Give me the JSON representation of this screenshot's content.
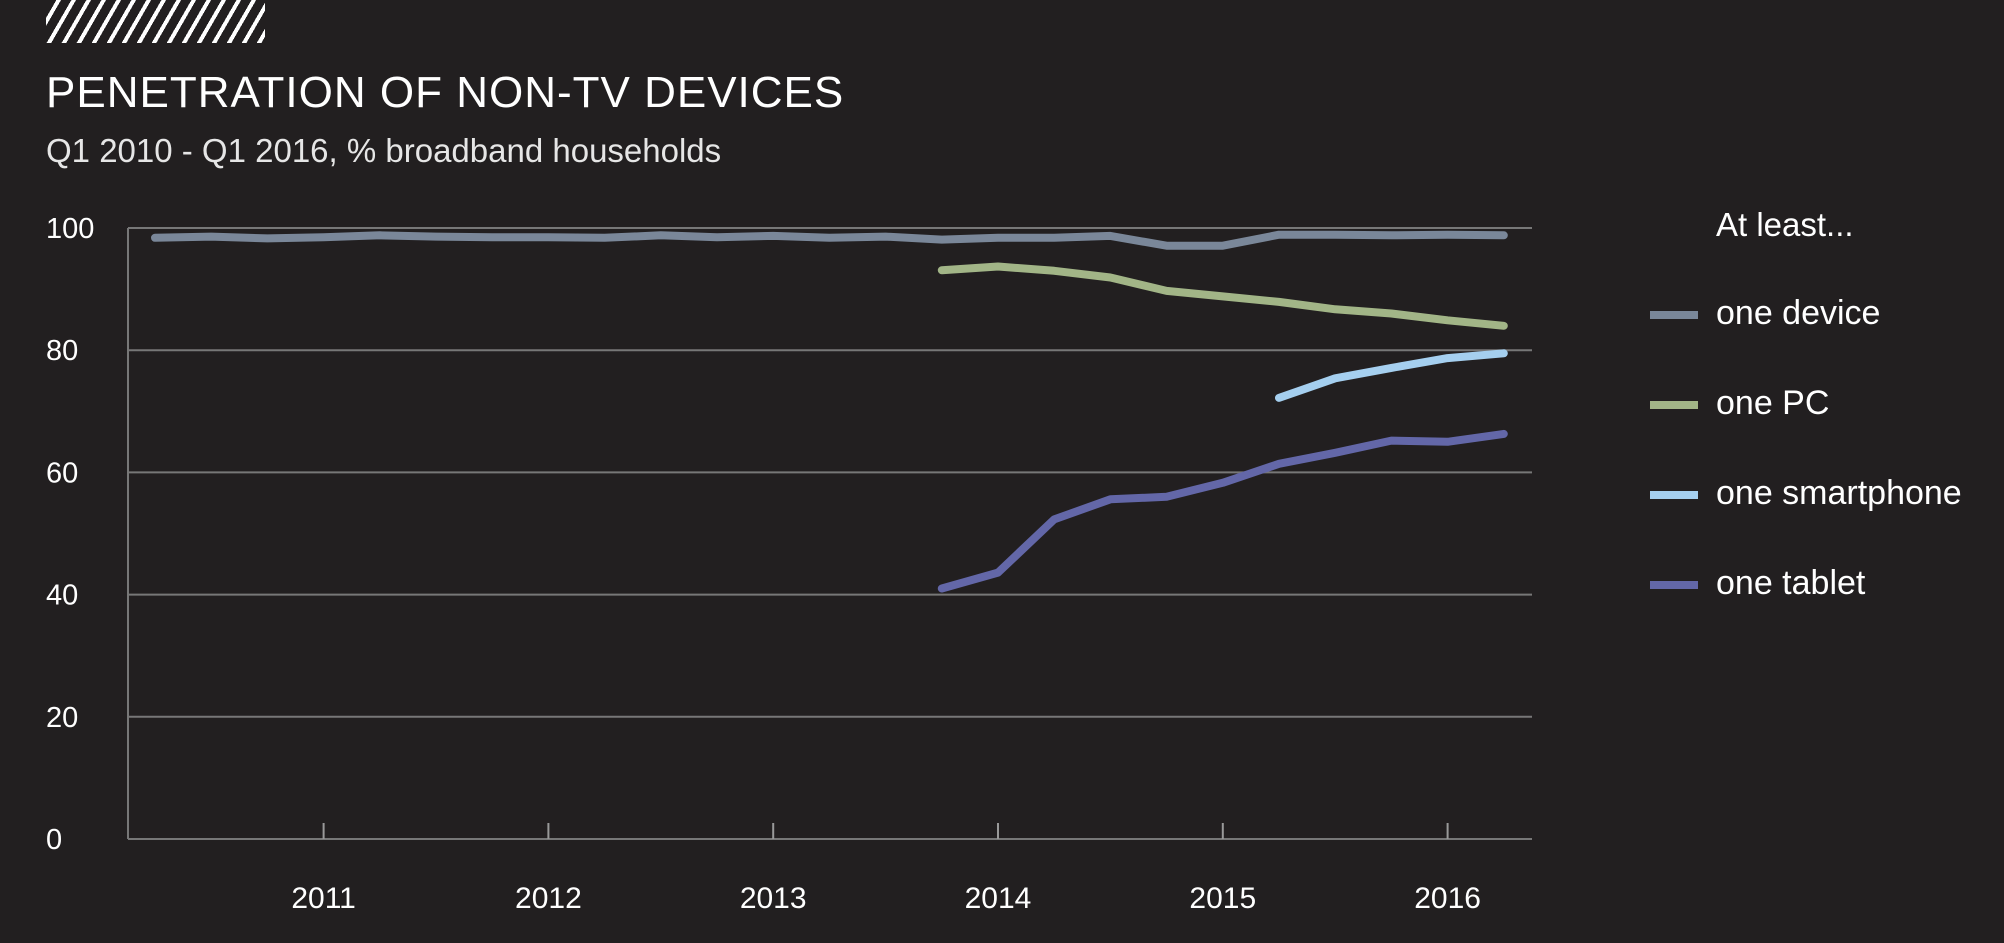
{
  "header": {
    "decoration": "hatch-pattern",
    "title": "PENETRATION OF NON-TV DEVICES",
    "subtitle": "Q1 2010 - Q1 2016, % broadband households"
  },
  "legend": {
    "title": "At least...",
    "items": [
      {
        "label": "one device",
        "color": "#7a8799"
      },
      {
        "label": "one PC",
        "color": "#a2b587"
      },
      {
        "label": "one smartphone",
        "color": "#a5cfef"
      },
      {
        "label": "one tablet",
        "color": "#6367a8"
      }
    ]
  },
  "chart_data": {
    "type": "line",
    "title": "PENETRATION OF NON-TV DEVICES",
    "subtitle": "Q1 2010 - Q1 2016, % broadband households",
    "xlabel": "",
    "ylabel": "",
    "x": [
      "Q1 2010",
      "Q2 2010",
      "Q3 2010",
      "Q4 2010",
      "Q1 2011",
      "Q2 2011",
      "Q3 2011",
      "Q4 2011",
      "Q1 2012",
      "Q2 2012",
      "Q3 2012",
      "Q4 2012",
      "Q1 2013",
      "Q2 2013",
      "Q3 2013",
      "Q4 2013",
      "Q1 2014",
      "Q2 2014",
      "Q3 2014",
      "Q4 2014",
      "Q1 2015",
      "Q2 2015",
      "Q3 2015",
      "Q4 2015",
      "Q1 2016"
    ],
    "x_tick_labels": [
      "2011",
      "2012",
      "2013",
      "2014",
      "2015",
      "2016"
    ],
    "y_ticks": [
      0,
      20,
      40,
      60,
      80,
      100
    ],
    "ylim": [
      0,
      100
    ],
    "grid": "horizontal",
    "legend_position": "right",
    "legend_title": "At least...",
    "series": [
      {
        "name": "one device",
        "color": "#7a8799",
        "values": [
          98.4,
          98.6,
          98.3,
          98.5,
          98.8,
          98.6,
          98.5,
          98.5,
          98.4,
          98.8,
          98.5,
          98.7,
          98.4,
          98.6,
          98.1,
          98.4,
          98.4,
          98.7,
          97.1,
          97.1,
          98.9,
          98.9,
          98.8,
          98.9,
          98.8
        ]
      },
      {
        "name": "one PC",
        "color": "#a2b587",
        "values": [
          null,
          null,
          null,
          null,
          null,
          null,
          null,
          null,
          null,
          null,
          null,
          null,
          null,
          null,
          93.1,
          93.7,
          93.0,
          91.9,
          89.7,
          88.8,
          87.9,
          86.7,
          86.0,
          84.9,
          84.0
        ]
      },
      {
        "name": "one smartphone",
        "color": "#a5cfef",
        "values": [
          null,
          null,
          null,
          null,
          null,
          null,
          null,
          null,
          null,
          null,
          null,
          null,
          null,
          null,
          null,
          null,
          null,
          null,
          null,
          null,
          72.2,
          75.4,
          77.1,
          78.7,
          79.5
        ]
      },
      {
        "name": "one tablet",
        "color": "#6367a8",
        "values": [
          null,
          null,
          null,
          null,
          null,
          null,
          null,
          null,
          null,
          null,
          null,
          null,
          null,
          null,
          41.0,
          43.6,
          52.3,
          55.6,
          56.0,
          58.3,
          61.4,
          63.2,
          65.2,
          65.0,
          66.3
        ]
      }
    ]
  }
}
